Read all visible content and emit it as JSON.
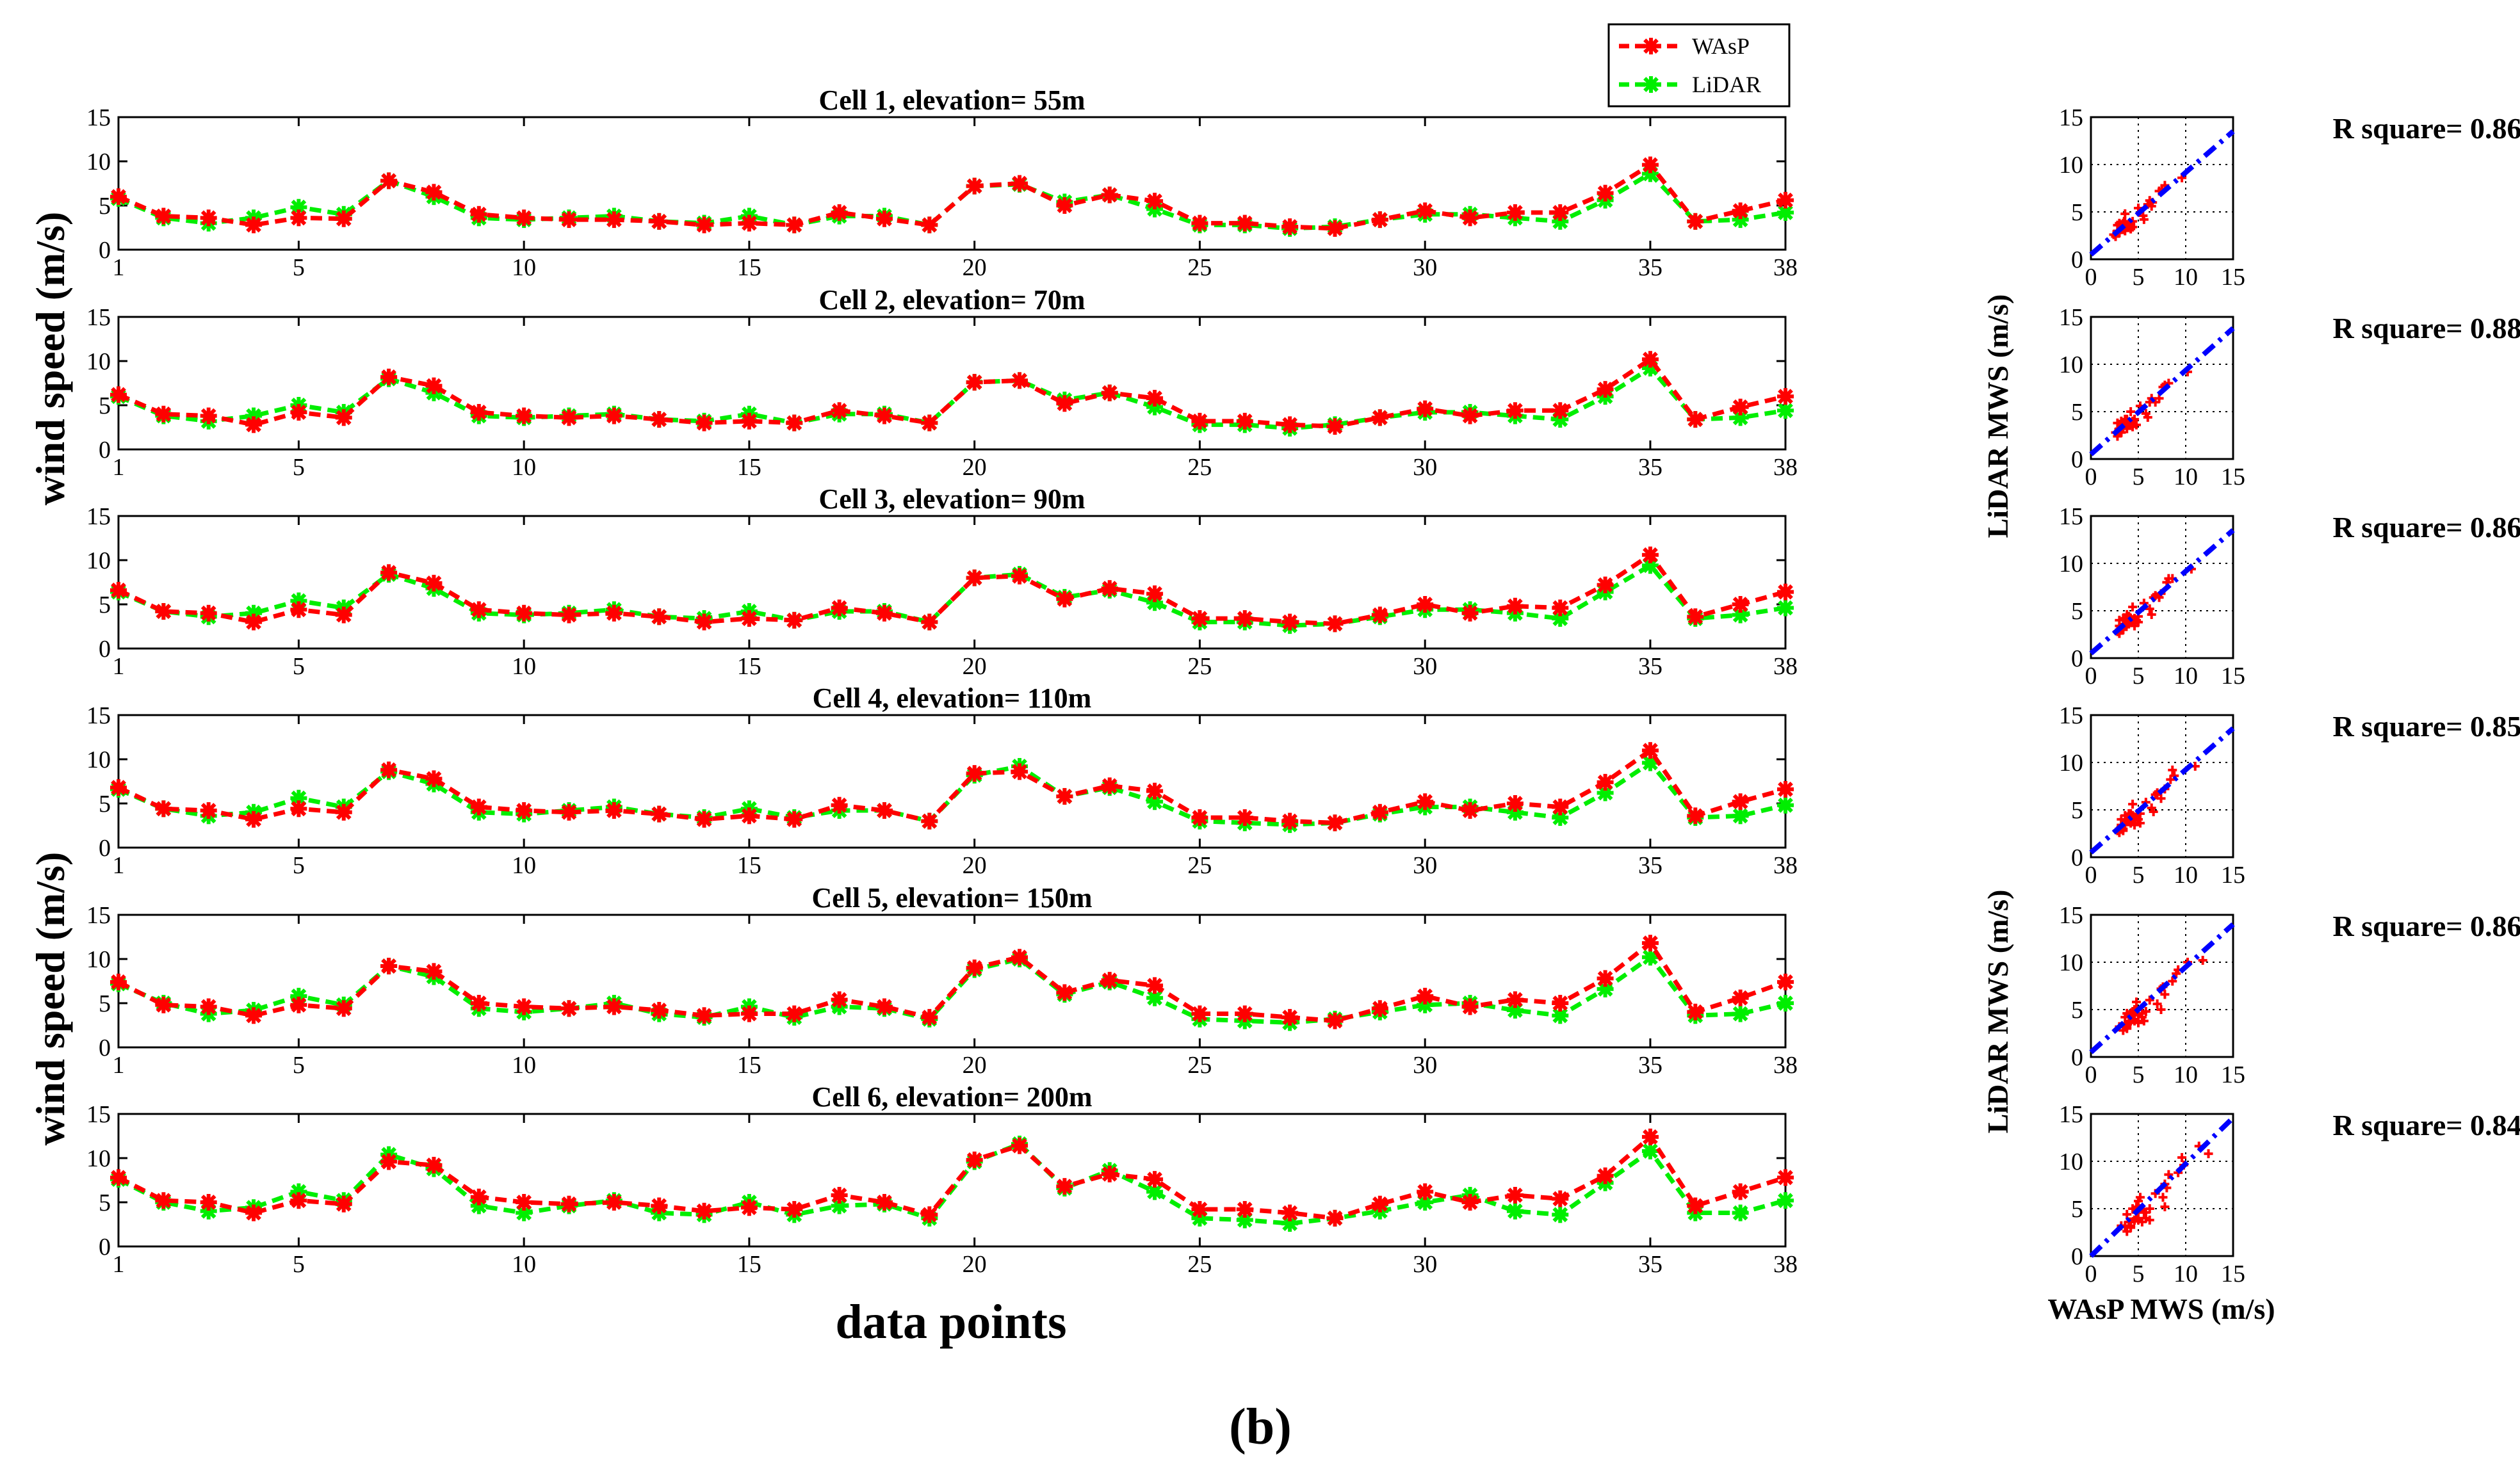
{
  "figure": {
    "panel_label_open": "(",
    "panel_label_letter": "b",
    "panel_label_close": ")",
    "line_ylabel_top": "wind speed (m/s)",
    "line_ylabel_bottom": "wind speed (m/s)",
    "line_xlabel": "data points",
    "scatter_ylabel_top": "LiDAR MWS (m/s)",
    "scatter_ylabel_bottom": "LiDAR MWS (m/s)",
    "scatter_xlabel": "WAsP MWS (m/s)",
    "legend": [
      {
        "label": "WAsP",
        "color": "#ff0000"
      },
      {
        "label": "LiDAR",
        "color": "#00ee00"
      }
    ],
    "colors": {
      "wasp": "#ff0000",
      "lidar": "#00ee00",
      "fit": "#0000ff"
    }
  },
  "chart_data": [
    {
      "type": "line",
      "title": "Cell 1, elevation= 55m",
      "x": [
        1,
        2,
        3,
        4,
        5,
        6,
        7,
        8,
        9,
        10,
        11,
        12,
        13,
        14,
        15,
        16,
        17,
        18,
        19,
        20,
        21,
        22,
        23,
        24,
        25,
        26,
        27,
        28,
        29,
        30,
        31,
        32,
        33,
        34,
        35,
        36,
        37,
        38
      ],
      "xticks": [
        1,
        5,
        10,
        15,
        20,
        25,
        30,
        35,
        38
      ],
      "yticks": [
        0,
        5,
        10,
        15
      ],
      "xlim": [
        1,
        38
      ],
      "ylim": [
        0,
        15
      ],
      "series": [
        {
          "name": "WAsP",
          "values": [
            6.0,
            3.8,
            3.6,
            2.8,
            3.6,
            3.5,
            7.8,
            6.5,
            4.0,
            3.6,
            3.4,
            3.4,
            3.2,
            2.8,
            3.0,
            2.8,
            4.2,
            3.5,
            2.8,
            7.2,
            7.5,
            5.0,
            6.2,
            5.5,
            3.0,
            3.0,
            2.6,
            2.4,
            3.4,
            4.4,
            3.6,
            4.2,
            4.2,
            6.4,
            9.6,
            3.2,
            4.4,
            5.6
          ]
        },
        {
          "name": "LiDAR",
          "values": [
            5.8,
            3.6,
            3.0,
            3.6,
            4.8,
            4.0,
            7.8,
            6.0,
            3.6,
            3.4,
            3.6,
            3.8,
            3.2,
            3.0,
            3.8,
            2.8,
            3.8,
            3.8,
            2.8,
            7.2,
            7.4,
            5.4,
            6.2,
            4.6,
            2.8,
            2.8,
            2.4,
            2.6,
            3.4,
            4.0,
            4.0,
            3.6,
            3.2,
            5.6,
            8.6,
            3.2,
            3.4,
            4.2
          ]
        }
      ],
      "r_square_label": "R square= 0.86",
      "scatter": {
        "ticks": [
          0,
          5,
          10,
          15
        ],
        "fit_line": [
          [
            0,
            0.5
          ],
          [
            15,
            13.5
          ]
        ]
      }
    },
    {
      "type": "line",
      "title": "Cell 2, elevation= 70m",
      "x": [
        1,
        2,
        3,
        4,
        5,
        6,
        7,
        8,
        9,
        10,
        11,
        12,
        13,
        14,
        15,
        16,
        17,
        18,
        19,
        20,
        21,
        22,
        23,
        24,
        25,
        26,
        27,
        28,
        29,
        30,
        31,
        32,
        33,
        34,
        35,
        36,
        37,
        38
      ],
      "xticks": [
        1,
        5,
        10,
        15,
        20,
        25,
        30,
        35,
        38
      ],
      "yticks": [
        0,
        5,
        10,
        15
      ],
      "xlim": [
        1,
        38
      ],
      "ylim": [
        0,
        15
      ],
      "series": [
        {
          "name": "WAsP",
          "values": [
            6.2,
            4.0,
            3.8,
            2.8,
            4.2,
            3.6,
            8.2,
            7.2,
            4.2,
            3.8,
            3.6,
            3.8,
            3.4,
            3.0,
            3.2,
            3.0,
            4.4,
            3.8,
            3.0,
            7.6,
            7.8,
            5.2,
            6.4,
            5.8,
            3.2,
            3.2,
            2.8,
            2.6,
            3.6,
            4.6,
            3.8,
            4.4,
            4.4,
            6.8,
            10.2,
            3.4,
            4.8,
            6.0
          ]
        },
        {
          "name": "LiDAR",
          "values": [
            6.0,
            3.8,
            3.2,
            3.8,
            5.0,
            4.2,
            8.0,
            6.4,
            3.8,
            3.6,
            3.8,
            4.0,
            3.4,
            3.2,
            4.0,
            3.0,
            4.0,
            4.0,
            3.0,
            7.6,
            7.8,
            5.6,
            6.4,
            4.8,
            2.8,
            2.8,
            2.4,
            2.8,
            3.6,
            4.2,
            4.2,
            3.8,
            3.4,
            6.0,
            9.2,
            3.4,
            3.6,
            4.4
          ]
        }
      ],
      "r_square_label": "R square= 0.88",
      "scatter": {
        "ticks": [
          0,
          5,
          10,
          15
        ],
        "fit_line": [
          [
            0,
            0.5
          ],
          [
            15,
            13.8
          ]
        ]
      }
    },
    {
      "type": "line",
      "title": "Cell 3, elevation= 90m",
      "x": [
        1,
        2,
        3,
        4,
        5,
        6,
        7,
        8,
        9,
        10,
        11,
        12,
        13,
        14,
        15,
        16,
        17,
        18,
        19,
        20,
        21,
        22,
        23,
        24,
        25,
        26,
        27,
        28,
        29,
        30,
        31,
        32,
        33,
        34,
        35,
        36,
        37,
        38
      ],
      "xticks": [
        1,
        5,
        10,
        15,
        20,
        25,
        30,
        35,
        38
      ],
      "yticks": [
        0,
        5,
        10,
        15
      ],
      "xlim": [
        1,
        38
      ],
      "ylim": [
        0,
        15
      ],
      "series": [
        {
          "name": "WAsP",
          "values": [
            6.6,
            4.2,
            4.0,
            3.0,
            4.4,
            3.8,
            8.6,
            7.4,
            4.4,
            4.0,
            3.8,
            4.0,
            3.6,
            3.0,
            3.4,
            3.2,
            4.6,
            4.0,
            3.0,
            8.0,
            8.2,
            5.6,
            6.8,
            6.2,
            3.4,
            3.4,
            3.0,
            2.8,
            3.8,
            5.0,
            4.0,
            4.8,
            4.6,
            7.2,
            10.6,
            3.6,
            5.0,
            6.4
          ]
        },
        {
          "name": "LiDAR",
          "values": [
            6.4,
            4.2,
            3.6,
            4.0,
            5.4,
            4.6,
            8.4,
            6.8,
            4.0,
            3.8,
            4.0,
            4.4,
            3.6,
            3.4,
            4.2,
            3.2,
            4.2,
            4.2,
            3.0,
            8.0,
            8.4,
            5.8,
            6.6,
            5.2,
            3.0,
            3.0,
            2.6,
            2.8,
            3.6,
            4.4,
            4.4,
            4.0,
            3.4,
            6.4,
            9.4,
            3.4,
            3.8,
            4.6
          ]
        }
      ],
      "r_square_label": "R square= 0.86",
      "scatter": {
        "ticks": [
          0,
          5,
          10,
          15
        ],
        "fit_line": [
          [
            0,
            0.5
          ],
          [
            15,
            13.5
          ]
        ]
      }
    },
    {
      "type": "line",
      "title": "Cell 4, elevation= 110m",
      "x": [
        1,
        2,
        3,
        4,
        5,
        6,
        7,
        8,
        9,
        10,
        11,
        12,
        13,
        14,
        15,
        16,
        17,
        18,
        19,
        20,
        21,
        22,
        23,
        24,
        25,
        26,
        27,
        28,
        29,
        30,
        31,
        32,
        33,
        34,
        35,
        36,
        37,
        38
      ],
      "xticks": [
        1,
        5,
        10,
        15,
        20,
        25,
        30,
        35,
        38
      ],
      "yticks": [
        0,
        5,
        10,
        15
      ],
      "xlim": [
        1,
        38
      ],
      "ylim": [
        0,
        15
      ],
      "series": [
        {
          "name": "WAsP",
          "values": [
            6.8,
            4.4,
            4.2,
            3.2,
            4.4,
            4.0,
            8.8,
            7.8,
            4.6,
            4.2,
            4.0,
            4.2,
            3.8,
            3.2,
            3.6,
            3.2,
            4.8,
            4.2,
            3.0,
            8.4,
            8.6,
            5.8,
            7.0,
            6.4,
            3.4,
            3.4,
            3.0,
            2.8,
            4.0,
            5.2,
            4.2,
            5.0,
            4.6,
            7.4,
            11.0,
            3.6,
            5.2,
            6.6
          ]
        },
        {
          "name": "LiDAR",
          "values": [
            6.6,
            4.4,
            3.6,
            4.0,
            5.6,
            4.6,
            8.6,
            7.2,
            4.0,
            3.8,
            4.2,
            4.6,
            3.8,
            3.4,
            4.4,
            3.4,
            4.2,
            4.2,
            3.0,
            8.2,
            9.2,
            5.8,
            6.8,
            5.2,
            3.0,
            2.8,
            2.6,
            2.8,
            3.8,
            4.6,
            4.6,
            4.0,
            3.4,
            6.2,
            9.6,
            3.4,
            3.6,
            4.8
          ]
        }
      ],
      "r_square_label": "R square= 0.85",
      "scatter": {
        "ticks": [
          0,
          5,
          10,
          15
        ],
        "fit_line": [
          [
            0,
            0.5
          ],
          [
            15,
            13.6
          ]
        ]
      }
    },
    {
      "type": "line",
      "title": "Cell 5, elevation= 150m",
      "x": [
        1,
        2,
        3,
        4,
        5,
        6,
        7,
        8,
        9,
        10,
        11,
        12,
        13,
        14,
        15,
        16,
        17,
        18,
        19,
        20,
        21,
        22,
        23,
        24,
        25,
        26,
        27,
        28,
        29,
        30,
        31,
        32,
        33,
        34,
        35,
        36,
        37,
        38
      ],
      "xticks": [
        1,
        5,
        10,
        15,
        20,
        25,
        30,
        35,
        38
      ],
      "yticks": [
        0,
        5,
        10,
        15
      ],
      "xlim": [
        1,
        38
      ],
      "ylim": [
        0,
        15
      ],
      "series": [
        {
          "name": "WAsP",
          "values": [
            7.4,
            4.8,
            4.6,
            3.6,
            4.8,
            4.4,
            9.2,
            8.6,
            5.0,
            4.6,
            4.4,
            4.6,
            4.2,
            3.6,
            3.8,
            3.8,
            5.4,
            4.6,
            3.4,
            9.0,
            10.2,
            6.2,
            7.6,
            7.0,
            3.8,
            3.8,
            3.4,
            3.0,
            4.4,
            5.8,
            4.6,
            5.4,
            5.0,
            7.8,
            11.8,
            4.0,
            5.6,
            7.4
          ]
        },
        {
          "name": "LiDAR",
          "values": [
            7.2,
            5.0,
            3.8,
            4.2,
            5.8,
            4.8,
            9.2,
            8.0,
            4.4,
            4.0,
            4.4,
            5.0,
            3.8,
            3.4,
            4.6,
            3.4,
            4.6,
            4.4,
            3.2,
            8.8,
            10.0,
            6.0,
            7.4,
            5.6,
            3.2,
            3.0,
            2.8,
            3.2,
            4.0,
            4.8,
            5.0,
            4.2,
            3.6,
            6.6,
            10.2,
            3.6,
            3.8,
            5.0
          ]
        }
      ],
      "r_square_label": "R square= 0.86",
      "scatter": {
        "ticks": [
          0,
          5,
          10,
          15
        ],
        "fit_line": [
          [
            0,
            0.5
          ],
          [
            15,
            14.0
          ]
        ]
      }
    },
    {
      "type": "line",
      "title": "Cell 6, elevation= 200m",
      "x": [
        1,
        2,
        3,
        4,
        5,
        6,
        7,
        8,
        9,
        10,
        11,
        12,
        13,
        14,
        15,
        16,
        17,
        18,
        19,
        20,
        21,
        22,
        23,
        24,
        25,
        26,
        27,
        28,
        29,
        30,
        31,
        32,
        33,
        34,
        35,
        36,
        37,
        38
      ],
      "xticks": [
        1,
        5,
        10,
        15,
        20,
        25,
        30,
        35,
        38
      ],
      "yticks": [
        0,
        5,
        10,
        15
      ],
      "xlim": [
        1,
        38
      ],
      "ylim": [
        0,
        15
      ],
      "series": [
        {
          "name": "WAsP",
          "values": [
            7.8,
            5.2,
            5.0,
            3.8,
            5.2,
            4.8,
            9.6,
            9.2,
            5.6,
            5.0,
            4.8,
            5.0,
            4.6,
            4.0,
            4.4,
            4.2,
            5.8,
            5.0,
            3.6,
            9.8,
            11.4,
            6.8,
            8.2,
            7.6,
            4.2,
            4.2,
            3.8,
            3.2,
            4.8,
            6.2,
            5.0,
            5.8,
            5.4,
            8.0,
            12.4,
            4.6,
            6.2,
            7.8
          ]
        },
        {
          "name": "LiDAR",
          "values": [
            7.6,
            5.0,
            4.0,
            4.4,
            6.2,
            5.2,
            10.4,
            8.8,
            4.6,
            3.8,
            4.6,
            5.2,
            3.8,
            3.6,
            5.0,
            3.6,
            4.6,
            4.8,
            3.2,
            9.6,
            11.6,
            6.6,
            8.6,
            6.2,
            3.2,
            3.0,
            2.6,
            3.2,
            4.0,
            5.0,
            5.8,
            4.0,
            3.6,
            7.2,
            10.8,
            3.8,
            3.8,
            5.2
          ]
        }
      ],
      "r_square_label": "R square= 0.84",
      "scatter": {
        "ticks": [
          0,
          5,
          10,
          15
        ],
        "fit_line": [
          [
            0,
            0.0
          ],
          [
            15,
            14.6
          ]
        ]
      }
    }
  ]
}
